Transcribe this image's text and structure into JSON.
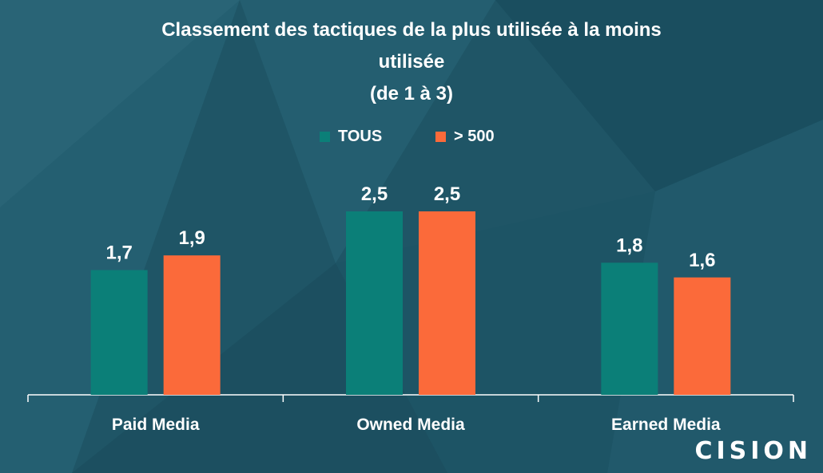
{
  "title_lines": [
    "Classement des tactiques de la plus utilisée à la moins",
    "utilisée",
    "(de 1 à 3)"
  ],
  "logo_text": "CISION",
  "colors": {
    "background": "#1f5566",
    "series_tous": "#0b7f78",
    "series_500": "#fb6a3a",
    "axis": "#ffffff"
  },
  "chart_data": {
    "type": "bar",
    "title": "Classement des tactiques de la plus utilisée à la moins utilisée (de 1 à 3)",
    "categories": [
      "Paid Media",
      "Owned Media",
      "Earned Media"
    ],
    "series": [
      {
        "name": "TOUS",
        "values": [
          1.7,
          2.5,
          1.8
        ],
        "labels": [
          "1,7",
          "2,5",
          "1,8"
        ],
        "color": "#0b7f78"
      },
      {
        "name": "> 500",
        "values": [
          1.9,
          2.5,
          1.6
        ],
        "labels": [
          "1,9",
          "2,5",
          "1,6"
        ],
        "color": "#fb6a3a"
      }
    ],
    "ylim": [
      0,
      3
    ],
    "grid": false,
    "legend_position": "top-center"
  }
}
